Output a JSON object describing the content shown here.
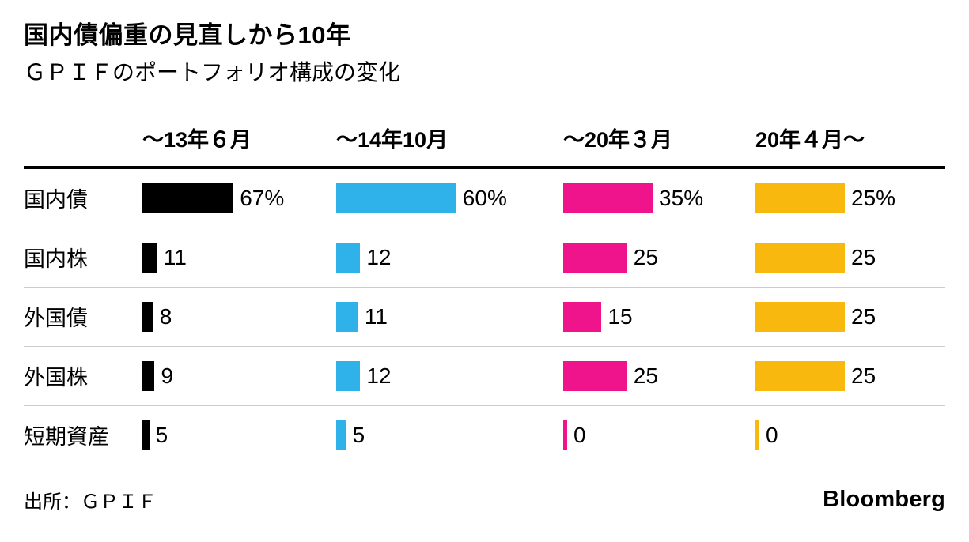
{
  "title": "国内債偏重の見直しから10年",
  "subtitle": "ＧＰＩＦのポートフォリオ構成の変化",
  "footer": {
    "source": "出所：ＧＰＩＦ",
    "brand": "Bloomberg"
  },
  "chart_data": {
    "type": "bar",
    "title": "国内債偏重の見直しから10年",
    "subtitle": "ＧＰＩＦのポートフォリオ構成の変化",
    "orientation": "horizontal",
    "unit": "%",
    "categories": [
      "国内債",
      "国内株",
      "外国債",
      "外国株",
      "短期資産"
    ],
    "periods": [
      {
        "label": "～13年６月",
        "color": "#000000",
        "values": [
          67,
          11,
          8,
          9,
          5
        ],
        "value_labels": [
          "67%",
          "11",
          "8",
          "9",
          "5"
        ]
      },
      {
        "label": "～14年10月",
        "color": "#2FB1EA",
        "values": [
          60,
          12,
          11,
          12,
          5
        ],
        "value_labels": [
          "60%",
          "12",
          "11",
          "12",
          "5"
        ]
      },
      {
        "label": "～20年３月",
        "color": "#F0148C",
        "values": [
          35,
          25,
          15,
          25,
          0
        ],
        "value_labels": [
          "35%",
          "25",
          "15",
          "25",
          "0"
        ]
      },
      {
        "label": "20年４月～",
        "color": "#F9B80E",
        "values": [
          25,
          25,
          25,
          25,
          0
        ],
        "value_labels": [
          "25%",
          "25",
          "25",
          "25",
          "0"
        ]
      }
    ],
    "source": "出所：ＧＰＩＦ",
    "grid": false,
    "legend": "none"
  }
}
